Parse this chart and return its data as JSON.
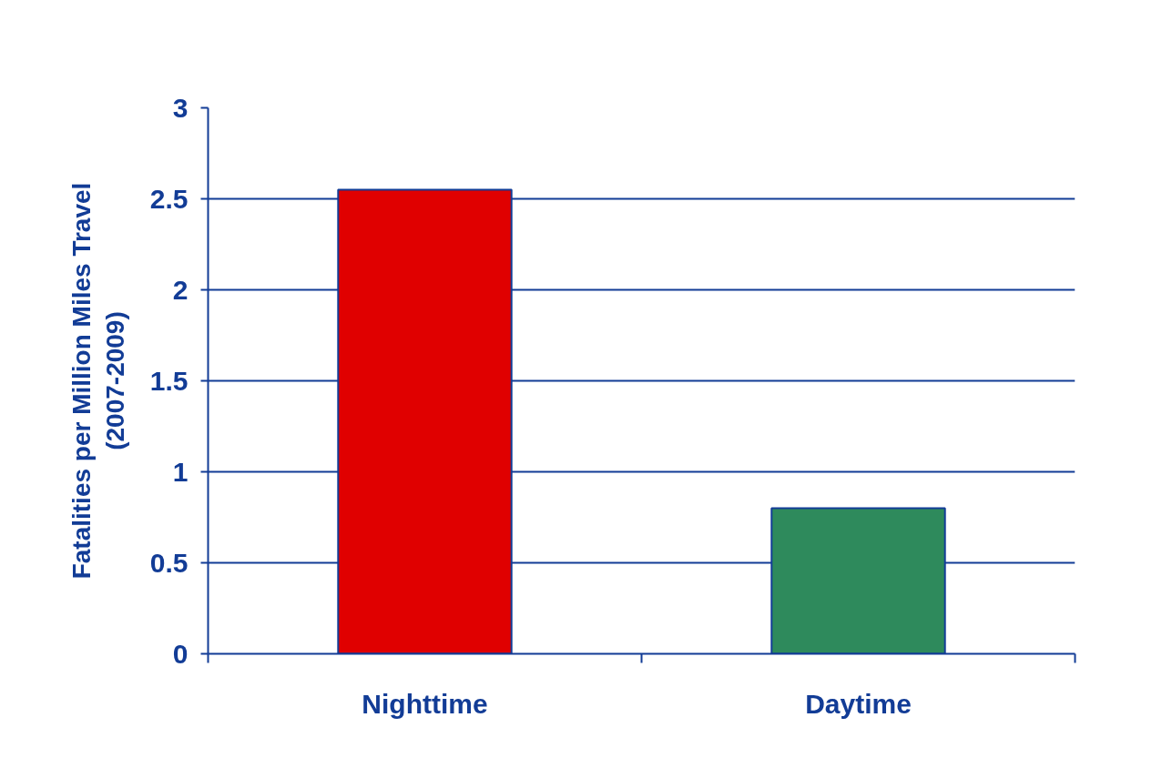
{
  "chart_data": {
    "type": "bar",
    "ylabel": "Fatalities per Million Miles Travel\n(2007-2009)",
    "categories": [
      "Nighttime",
      "Daytime"
    ],
    "values": [
      2.55,
      0.8
    ],
    "colors": [
      "#e00000",
      "#2e8a5c"
    ],
    "ylim": [
      0,
      3
    ],
    "yticks": [
      0,
      0.5,
      1,
      1.5,
      2,
      2.5,
      3
    ],
    "grid": "y"
  }
}
